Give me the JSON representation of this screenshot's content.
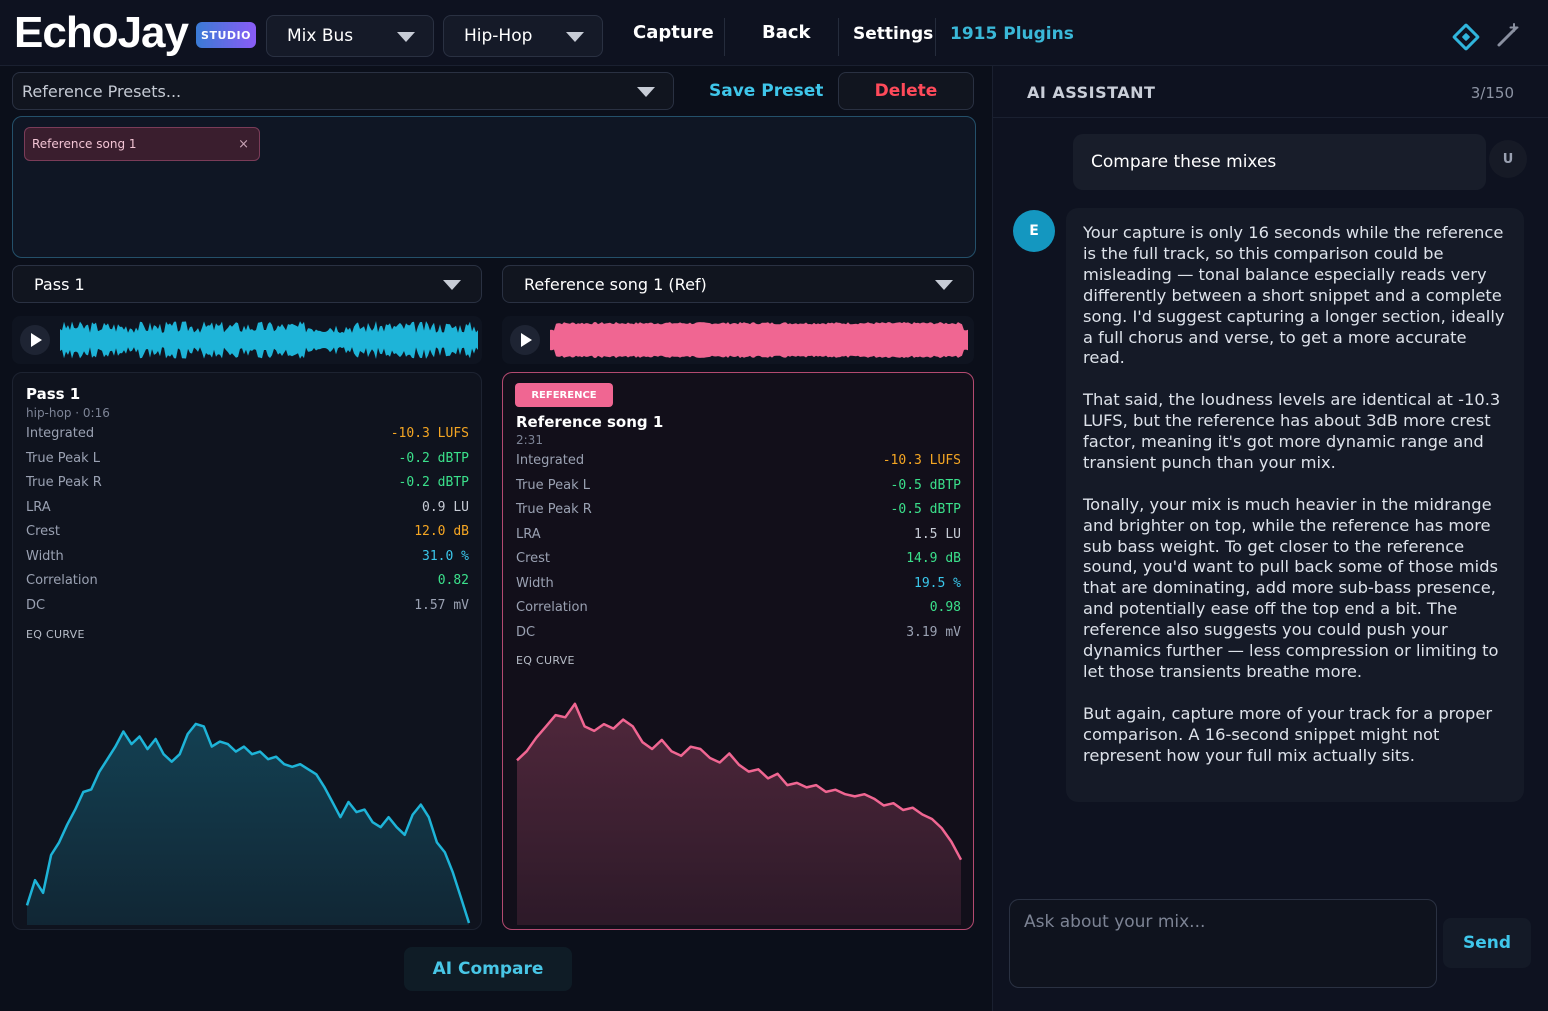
{
  "app": {
    "logo_text": "EchoJay",
    "badge": "STUDIO"
  },
  "topbar": {
    "bus_select": "Mix Bus",
    "genre_select": "Hip-Hop",
    "capture": "Capture",
    "back": "Back",
    "settings": "Settings",
    "plugins": "1915 Plugins",
    "icons": [
      "diamond-icon",
      "wand-icon"
    ]
  },
  "presets": {
    "placeholder": "Reference Presets...",
    "save_label": "Save Preset",
    "delete_label": "Delete"
  },
  "references": {
    "chips": [
      "Reference song 1"
    ]
  },
  "mix": {
    "selector": "Pass 1",
    "title": "Pass 1",
    "subtitle": "hip-hop · 0:16",
    "metrics": [
      {
        "label": "Integrated",
        "value": "-10.3 LUFS",
        "color": "#f5a623"
      },
      {
        "label": "True Peak L",
        "value": "-0.2 dBTP",
        "color": "#3be08b"
      },
      {
        "label": "True Peak R",
        "value": "-0.2 dBTP",
        "color": "#3be08b"
      },
      {
        "label": "LRA",
        "value": "0.9 LU",
        "color": "#c7ccd6"
      },
      {
        "label": "Crest",
        "value": "12.0 dB",
        "color": "#f5a623"
      },
      {
        "label": "Width",
        "value": "31.0 %",
        "color": "#3ac6ea"
      },
      {
        "label": "Correlation",
        "value": "0.82",
        "color": "#3be08b"
      },
      {
        "label": "DC",
        "value": "1.57 mV",
        "color": "#9aa1b2"
      }
    ],
    "eq_label": "EQ CURVE",
    "eq_curve": [
      0.07,
      0.17,
      0.12,
      0.27,
      0.32,
      0.39,
      0.45,
      0.52,
      0.53,
      0.6,
      0.65,
      0.7,
      0.76,
      0.71,
      0.74,
      0.69,
      0.73,
      0.67,
      0.64,
      0.67,
      0.75,
      0.79,
      0.78,
      0.7,
      0.72,
      0.71,
      0.68,
      0.7,
      0.67,
      0.68,
      0.65,
      0.66,
      0.63,
      0.62,
      0.63,
      0.61,
      0.59,
      0.54,
      0.48,
      0.42,
      0.48,
      0.44,
      0.45,
      0.4,
      0.38,
      0.42,
      0.38,
      0.35,
      0.43,
      0.47,
      0.42,
      0.32,
      0.28,
      0.2,
      0.1,
      0.0
    ],
    "color": "#1eb4d8"
  },
  "reference": {
    "selector": "Reference song 1 (Ref)",
    "badge": "REFERENCE",
    "title": "Reference song 1",
    "subtitle": "2:31",
    "metrics": [
      {
        "label": "Integrated",
        "value": "-10.3 LUFS",
        "color": "#f5a623"
      },
      {
        "label": "True Peak L",
        "value": "-0.5 dBTP",
        "color": "#3be08b"
      },
      {
        "label": "True Peak R",
        "value": "-0.5 dBTP",
        "color": "#3be08b"
      },
      {
        "label": "LRA",
        "value": "1.5 LU",
        "color": "#c7ccd6"
      },
      {
        "label": "Crest",
        "value": "14.9 dB",
        "color": "#3be08b"
      },
      {
        "label": "Width",
        "value": "19.5 %",
        "color": "#3ac6ea"
      },
      {
        "label": "Correlation",
        "value": "0.98",
        "color": "#3be08b"
      },
      {
        "label": "DC",
        "value": "3.19 mV",
        "color": "#9aa1b2"
      }
    ],
    "eq_label": "EQ CURVE",
    "eq_curve": [
      0.72,
      0.76,
      0.82,
      0.87,
      0.92,
      0.91,
      0.97,
      0.87,
      0.85,
      0.88,
      0.86,
      0.9,
      0.87,
      0.8,
      0.77,
      0.81,
      0.76,
      0.74,
      0.78,
      0.77,
      0.73,
      0.71,
      0.75,
      0.7,
      0.67,
      0.68,
      0.64,
      0.66,
      0.61,
      0.62,
      0.6,
      0.61,
      0.58,
      0.59,
      0.57,
      0.56,
      0.57,
      0.55,
      0.52,
      0.53,
      0.5,
      0.51,
      0.48,
      0.46,
      0.42,
      0.36,
      0.28
    ],
    "color": "#f06692"
  },
  "actions": {
    "ai_compare": "AI Compare"
  },
  "assistant": {
    "title": "AI ASSISTANT",
    "count": "3/150",
    "user_avatar": "U",
    "bot_avatar": "E",
    "user_message": "Compare these mixes",
    "bot_paragraphs": [
      "Your capture is only 16 seconds while the reference is the full track, so this comparison could be misleading — tonal balance especially reads very differently between a short snippet and a complete song. I'd suggest capturing a longer section, ideally a full chorus and verse, to get a more accurate read.",
      "That said, the loudness levels are identical at -10.3 LUFS, but the reference has about 3dB more crest factor, meaning it's got more dynamic range and transient punch than your mix.",
      "Tonally, your mix is much heavier in the midrange and brighter on top, while the reference has more sub bass weight. To get closer to the reference sound, you'd want to pull back some of those mids that are dominating, add more sub-bass presence, and potentially ease off the top end a bit. The reference also suggests you could push your dynamics further — less compression or limiting to let those transients breathe more.",
      "But again, capture more of your track for a proper comparison. A 16-second snippet might not represent how your full mix actually sits."
    ],
    "input_placeholder": "Ask about your mix...",
    "send_label": "Send"
  }
}
